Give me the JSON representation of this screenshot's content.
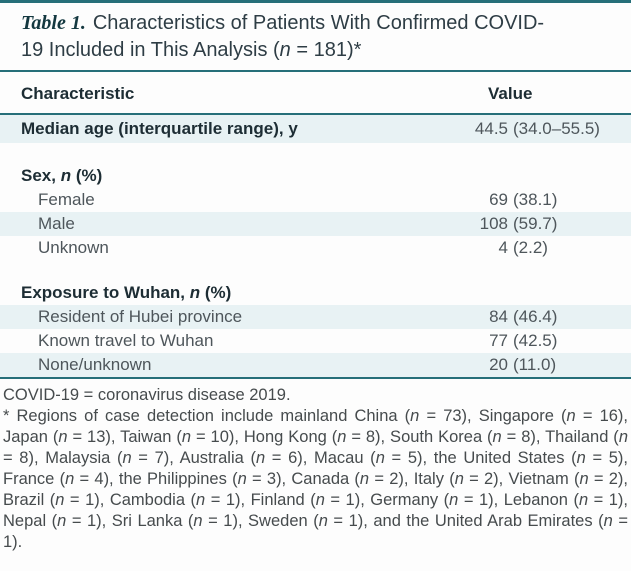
{
  "page": {
    "title_label": "Table 1.",
    "title_text": "Characteristics of Patients With Confirmed COVID-19 Included in This Analysis (n = 181)*"
  },
  "table": {
    "col_characteristic": "Characteristic",
    "col_value": "Value",
    "rows": [
      {
        "label": "Median age (interquartile range), y",
        "value_num": "44.5",
        "value_paren": "(34.0–55.5)"
      },
      {
        "label": "Sex, n (%)",
        "value_num": "",
        "value_paren": ""
      },
      {
        "label": "Female",
        "value_num": "69",
        "value_paren": "(38.1)"
      },
      {
        "label": "Male",
        "value_num": "108",
        "value_paren": "(59.7)"
      },
      {
        "label": "Unknown",
        "value_num": "4",
        "value_paren": "(2.2)"
      },
      {
        "label": "Exposure to Wuhan, n (%)",
        "value_num": "",
        "value_paren": ""
      },
      {
        "label": "Resident of Hubei province",
        "value_num": "84",
        "value_paren": "(46.4)"
      },
      {
        "label": "Known travel to Wuhan",
        "value_num": "77",
        "value_paren": "(42.5)"
      },
      {
        "label": "None/unknown",
        "value_num": "20",
        "value_paren": "(11.0)"
      }
    ]
  },
  "footnotes": {
    "abbreviation": "COVID-19 = coronavirus disease 2019.",
    "regions": "* Regions of case detection include mainland China (n = 73), Singapore (n = 16), Japan (n = 13), Taiwan (n = 10), Hong Kong (n = 8), South Korea (n = 8), Thailand (n = 8), Malaysia (n = 7), Australia (n = 6), Macau (n = 5), the United States (n = 5), France (n = 4), the Philippines (n = 3), Canada (n = 2), Italy (n = 2), Vietnam (n = 2), Brazil (n = 1), Cambodia (n = 1), Finland (n = 1), Germany (n = 1), Lebanon (n = 1), Nepal (n = 1), Sri Lanka (n = 1), Sweden (n = 1), and the United Arab Emirates (n = 1)."
  },
  "colors": {
    "accent_teal": "#266f79",
    "row_shade": "#e8f2f4",
    "heading_text": "#1d2d34",
    "body_text": "#4e565b"
  }
}
